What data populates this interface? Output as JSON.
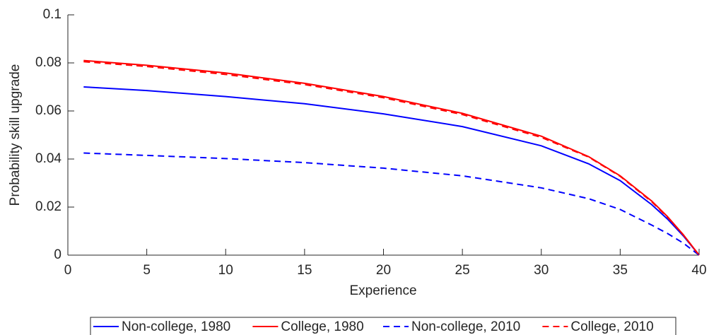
{
  "chart_data": {
    "type": "line",
    "xlabel": "Experience",
    "ylabel": "Probability skill upgrade",
    "x": [
      1,
      5,
      10,
      15,
      20,
      25,
      30,
      33,
      35,
      37,
      38,
      39,
      40
    ],
    "series": [
      {
        "name": "Non-college, 1980",
        "color": "#0000ff",
        "dash": "solid",
        "values": [
          0.07,
          0.0685,
          0.066,
          0.063,
          0.0588,
          0.0535,
          0.0455,
          0.038,
          0.031,
          0.021,
          0.015,
          0.008,
          0
        ]
      },
      {
        "name": "College, 1980",
        "color": "#ff0000",
        "dash": "solid",
        "values": [
          0.081,
          0.079,
          0.0758,
          0.0715,
          0.066,
          0.059,
          0.0495,
          0.041,
          0.033,
          0.0225,
          0.016,
          0.0085,
          0
        ]
      },
      {
        "name": "Non-college, 2010",
        "color": "#0000ff",
        "dash": "dashed",
        "values": [
          0.0425,
          0.0415,
          0.0402,
          0.0385,
          0.0362,
          0.033,
          0.028,
          0.0235,
          0.019,
          0.0125,
          0.009,
          0.005,
          0
        ]
      },
      {
        "name": "College, 2010",
        "color": "#ff0000",
        "dash": "dashed",
        "values": [
          0.0805,
          0.0785,
          0.0752,
          0.071,
          0.0655,
          0.0585,
          0.049,
          0.0408,
          0.0328,
          0.0222,
          0.0158,
          0.0084,
          0
        ]
      }
    ],
    "xlim": [
      0,
      40
    ],
    "xticks": [
      0,
      5,
      10,
      15,
      20,
      25,
      30,
      35,
      40
    ],
    "ylim": [
      0,
      0.1
    ],
    "yticks": [
      0,
      0.02,
      0.04,
      0.06,
      0.08,
      0.1
    ],
    "grid": false,
    "legend": "bottom"
  }
}
